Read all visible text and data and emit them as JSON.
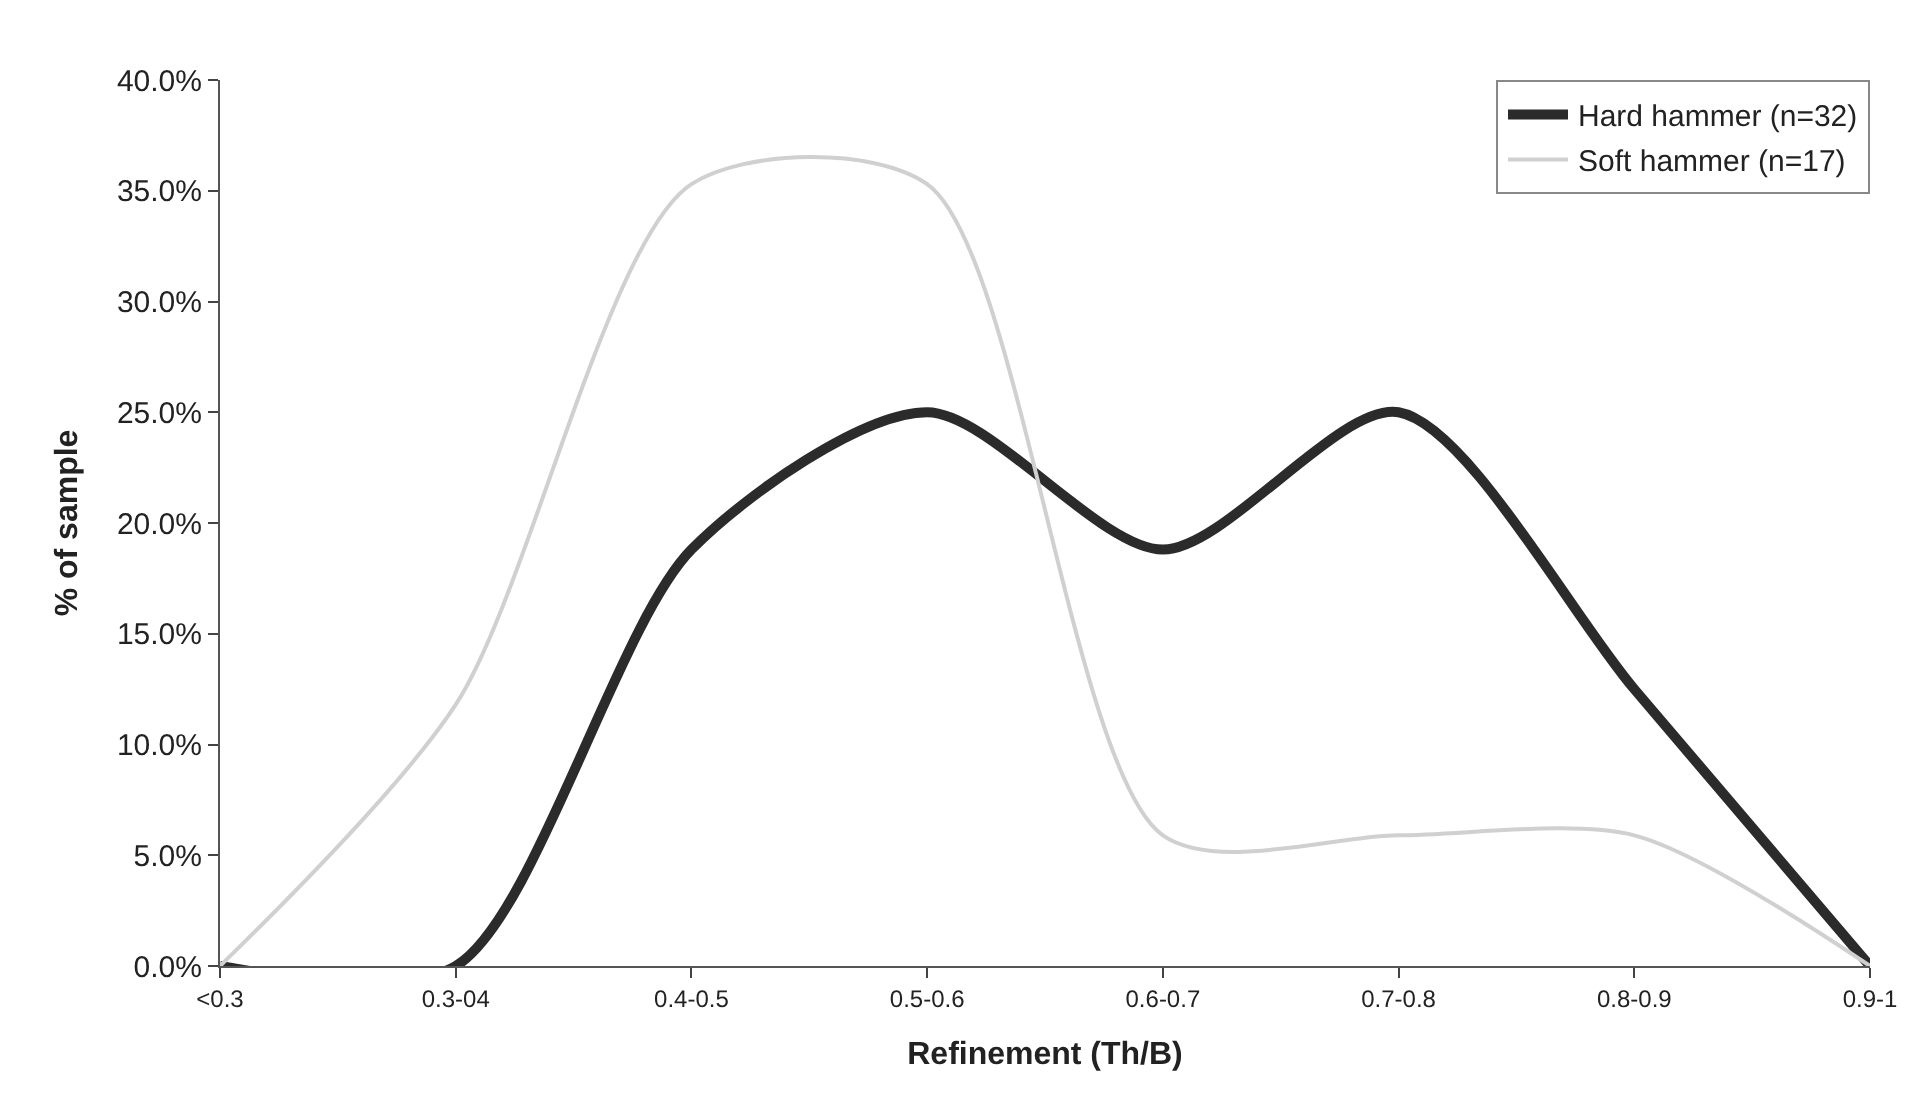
{
  "chart_data": {
    "type": "line",
    "xlabel": "Refinement (Th/B)",
    "ylabel": "% of sample",
    "categories": [
      "<0.3",
      "0.3-04",
      "0.4-0.5",
      "0.5-0.6",
      "0.6-0.7",
      "0.7-0.8",
      "0.8-0.9",
      "0.9-1"
    ],
    "series": [
      {
        "name": "Hard hammer (n=32)",
        "color": "#2b2b2b",
        "values": [
          0,
          0,
          18.8,
          25.0,
          18.8,
          25.0,
          12.5,
          0
        ]
      },
      {
        "name": "Soft hammer (n=17)",
        "color": "#d0d0d0",
        "values": [
          0,
          11.8,
          35.3,
          35.3,
          5.9,
          5.9,
          5.9,
          0
        ]
      }
    ],
    "ylim": [
      0,
      40
    ],
    "yticks": [
      {
        "value": 0,
        "label": "0.0%"
      },
      {
        "value": 5,
        "label": "5.0%"
      },
      {
        "value": 10,
        "label": "10.0%"
      },
      {
        "value": 15,
        "label": "15.0%"
      },
      {
        "value": 20,
        "label": "20.0%"
      },
      {
        "value": 25,
        "label": "25.0%"
      },
      {
        "value": 30,
        "label": "30.0%"
      },
      {
        "value": 35,
        "label": "35.0%"
      },
      {
        "value": 40,
        "label": "40.0%"
      }
    ],
    "legend": "top right",
    "marker": "none",
    "line_style": "solid"
  }
}
